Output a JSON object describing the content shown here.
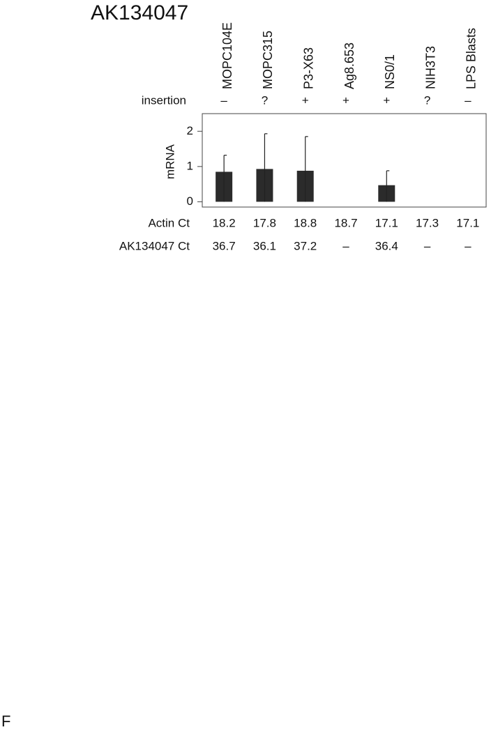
{
  "chart_data": {
    "type": "bar",
    "title": "AK134047",
    "categories": [
      "MOPC104E",
      "MOPC315",
      "P3-X63",
      "Ag8.653",
      "NS0/1",
      "NIH3T3",
      "LPS Blasts"
    ],
    "y_label": "mRNA",
    "values": [
      0.85,
      0.93,
      0.88,
      0,
      0.47,
      0,
      0
    ],
    "errors": [
      0.47,
      1.0,
      0.97,
      0,
      0.41,
      0,
      0
    ],
    "color": "#2b2b2b",
    "ylim": [
      -0.15,
      2.5
    ],
    "yticks": [
      0,
      1,
      2
    ],
    "rows": [
      {
        "label": "insertion",
        "cells": [
          "–",
          "?",
          "+",
          "+",
          "+",
          "?",
          "–"
        ]
      },
      {
        "label": "Actin Ct",
        "cells": [
          18.2,
          17.8,
          18.8,
          18.7,
          17.1,
          17.3,
          17.1
        ]
      },
      {
        "label": "AK134047 Ct",
        "cells": [
          36.7,
          36.1,
          37.2,
          "–",
          36.4,
          "–",
          "–"
        ]
      }
    ],
    "panel_label": "F"
  }
}
